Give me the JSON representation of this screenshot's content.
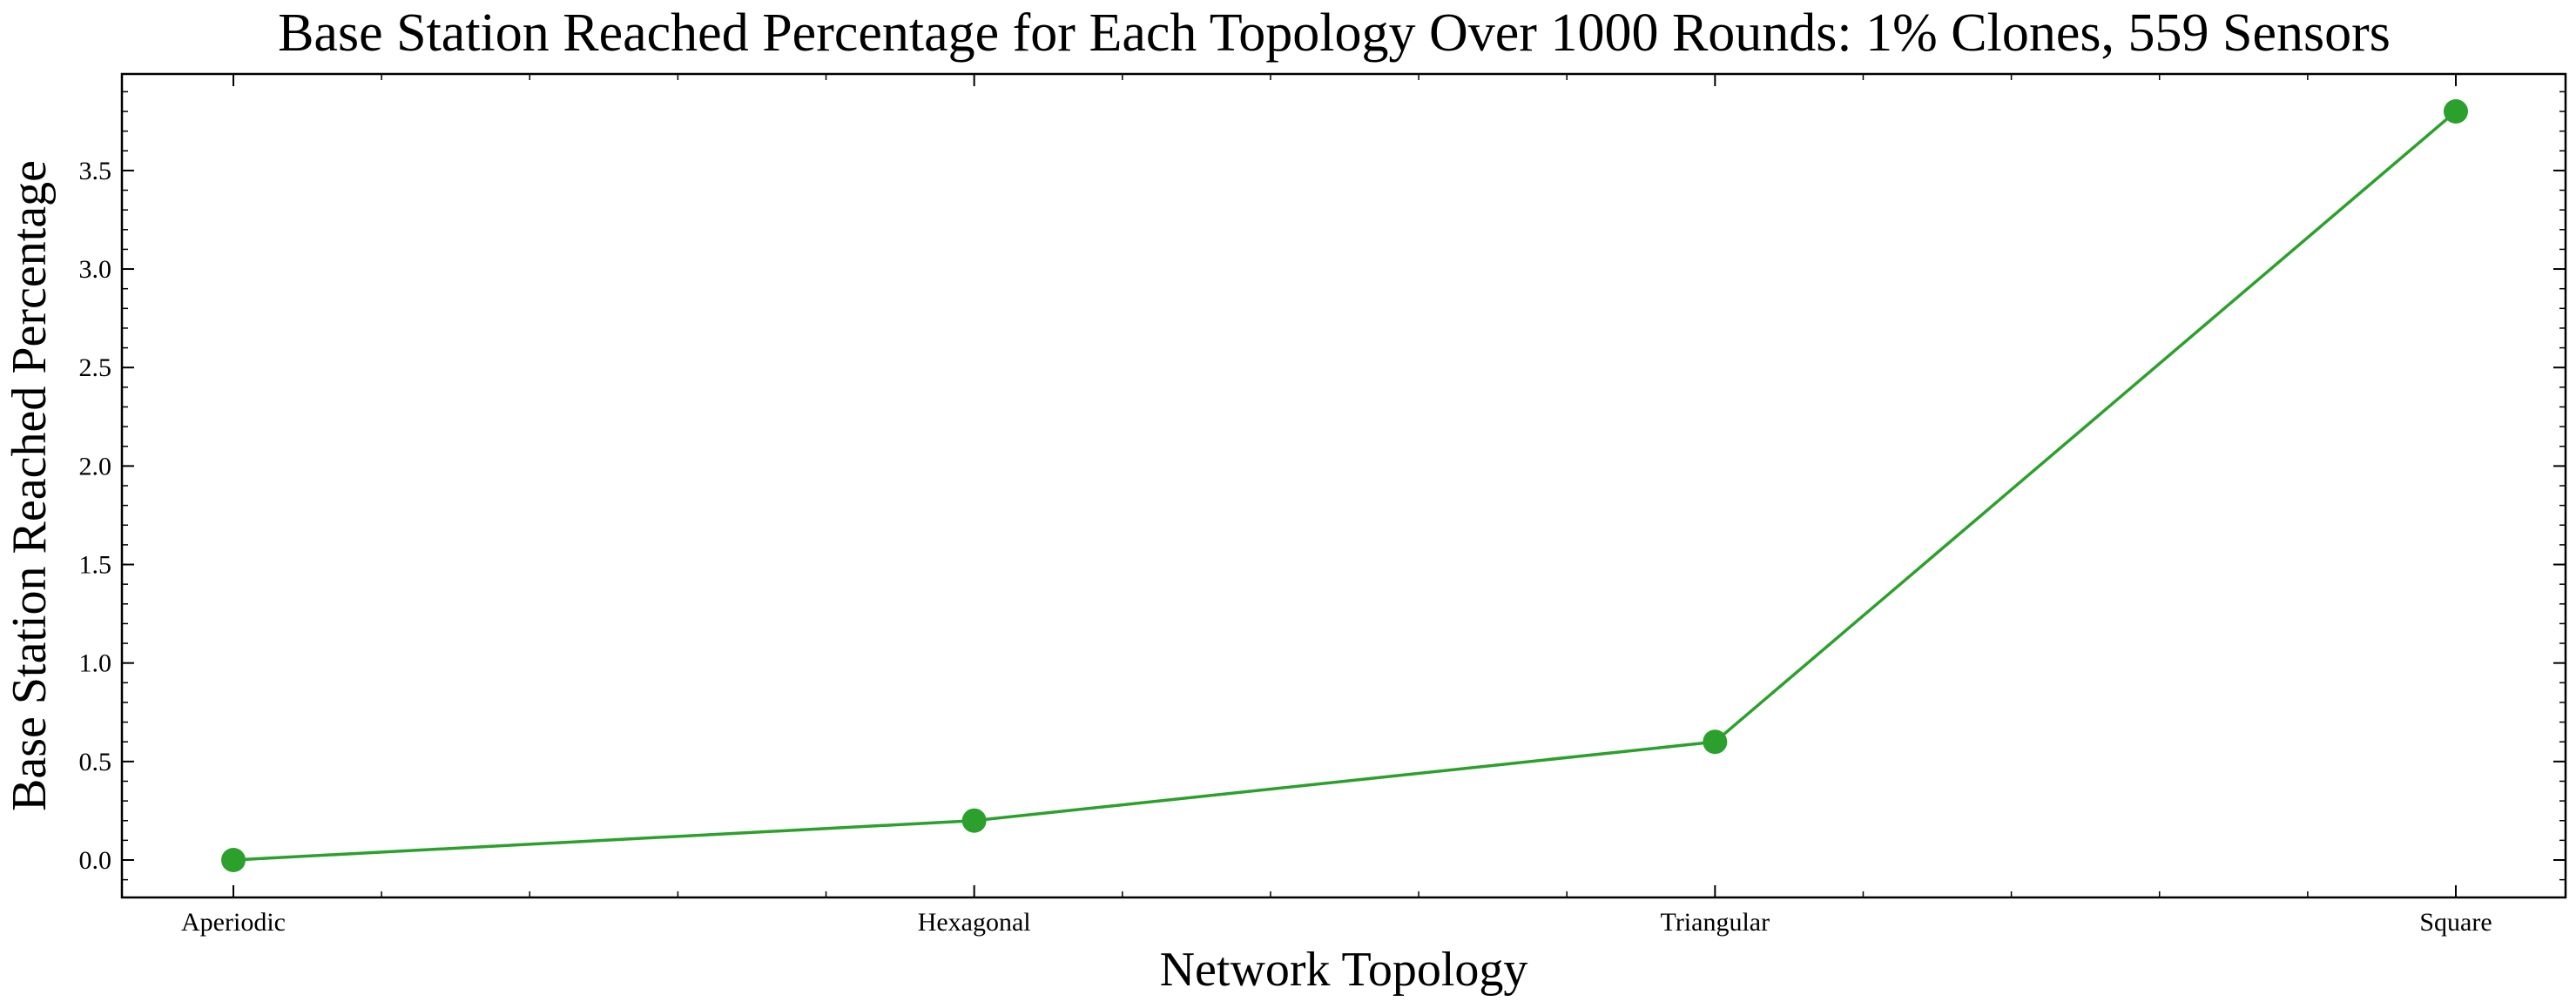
{
  "chart_data": {
    "type": "line",
    "title": "Base Station Reached Percentage for Each Topology Over 1000 Rounds: 1% Clones, 559 Sensors",
    "xlabel": "Network Topology",
    "ylabel": "Base Station Reached Percentage",
    "categories": [
      "Aperiodic",
      "Hexagonal",
      "Triangular",
      "Square"
    ],
    "series": [
      {
        "values": [
          0.0,
          0.2,
          0.6,
          3.8
        ],
        "color": "#2ca02c",
        "marker": "circle"
      }
    ],
    "ylim": [
      -0.19,
      3.99
    ],
    "yticks": [
      0.0,
      0.5,
      1.0,
      1.5,
      2.0,
      2.5,
      3.0,
      3.5
    ],
    "ytick_labels": [
      "0.0",
      "0.5",
      "1.0",
      "1.5",
      "2.0",
      "2.5",
      "3.0",
      "3.5"
    ],
    "grid": false,
    "legend": false
  }
}
